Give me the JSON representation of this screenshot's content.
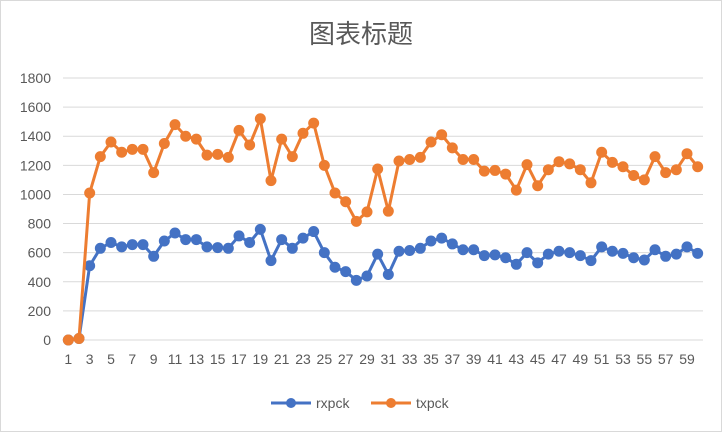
{
  "chart_data": {
    "type": "line",
    "title": "图表标题",
    "xlabel": "",
    "ylabel": "",
    "ylim": [
      0,
      1800
    ],
    "yticks": [
      0,
      200,
      400,
      600,
      800,
      1000,
      1200,
      1400,
      1600,
      1800
    ],
    "x": [
      1,
      2,
      3,
      4,
      5,
      6,
      7,
      8,
      9,
      10,
      11,
      12,
      13,
      14,
      15,
      16,
      17,
      18,
      19,
      20,
      21,
      22,
      23,
      24,
      25,
      26,
      27,
      28,
      29,
      30,
      31,
      32,
      33,
      34,
      35,
      36,
      37,
      38,
      39,
      40,
      41,
      42,
      43,
      44,
      45,
      46,
      47,
      48,
      49,
      50,
      51,
      52,
      53,
      54,
      55,
      56,
      57,
      58,
      59,
      60
    ],
    "xtick_labels": [
      "1",
      "3",
      "5",
      "7",
      "9",
      "11",
      "13",
      "15",
      "17",
      "19",
      "21",
      "23",
      "25",
      "27",
      "29",
      "31",
      "33",
      "35",
      "37",
      "39",
      "41",
      "43",
      "45",
      "47",
      "49",
      "51",
      "53",
      "55",
      "57",
      "59"
    ],
    "grid": true,
    "legend_position": "bottom",
    "series": [
      {
        "name": "rxpck",
        "color": "#4472C4",
        "values": [
          0,
          10,
          510,
          630,
          670,
          640,
          655,
          655,
          575,
          680,
          735,
          690,
          690,
          640,
          635,
          630,
          715,
          670,
          760,
          545,
          690,
          630,
          700,
          745,
          600,
          500,
          470,
          410,
          440,
          590,
          450,
          610,
          615,
          630,
          680,
          700,
          660,
          620,
          620,
          580,
          585,
          565,
          520,
          600,
          530,
          590,
          610,
          600,
          580,
          545,
          640,
          610,
          595,
          565,
          550,
          620,
          575,
          590,
          640,
          595
        ]
      },
      {
        "name": "txpck",
        "color": "#ED7D31",
        "values": [
          0,
          10,
          1010,
          1260,
          1360,
          1290,
          1310,
          1310,
          1150,
          1350,
          1480,
          1400,
          1380,
          1270,
          1275,
          1255,
          1440,
          1340,
          1520,
          1095,
          1380,
          1260,
          1420,
          1490,
          1200,
          1010,
          950,
          815,
          880,
          1175,
          885,
          1230,
          1240,
          1255,
          1360,
          1410,
          1320,
          1240,
          1240,
          1160,
          1165,
          1140,
          1030,
          1205,
          1060,
          1170,
          1225,
          1210,
          1170,
          1080,
          1290,
          1220,
          1190,
          1130,
          1100,
          1260,
          1150,
          1170,
          1280,
          1190
        ]
      }
    ]
  }
}
